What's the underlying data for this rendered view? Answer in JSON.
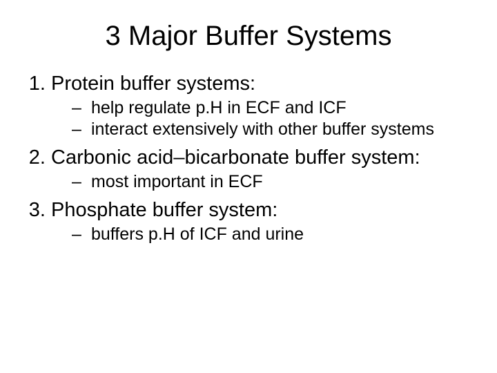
{
  "title": "3 Major Buffer Systems",
  "title_fontsize": 40,
  "main_fontsize": 29,
  "sub_fontsize": 25,
  "text_color": "#000000",
  "background_color": "#ffffff",
  "items": [
    {
      "label": "Protein buffer systems:",
      "subs": [
        "help regulate p.H in ECF and ICF",
        "interact extensively with other buffer systems"
      ]
    },
    {
      "label": "Carbonic acid–bicarbonate buffer system:",
      "subs": [
        "most important in ECF"
      ]
    },
    {
      "label": "Phosphate buffer system:",
      "subs": [
        "buffers p.H of ICF and urine"
      ]
    }
  ]
}
